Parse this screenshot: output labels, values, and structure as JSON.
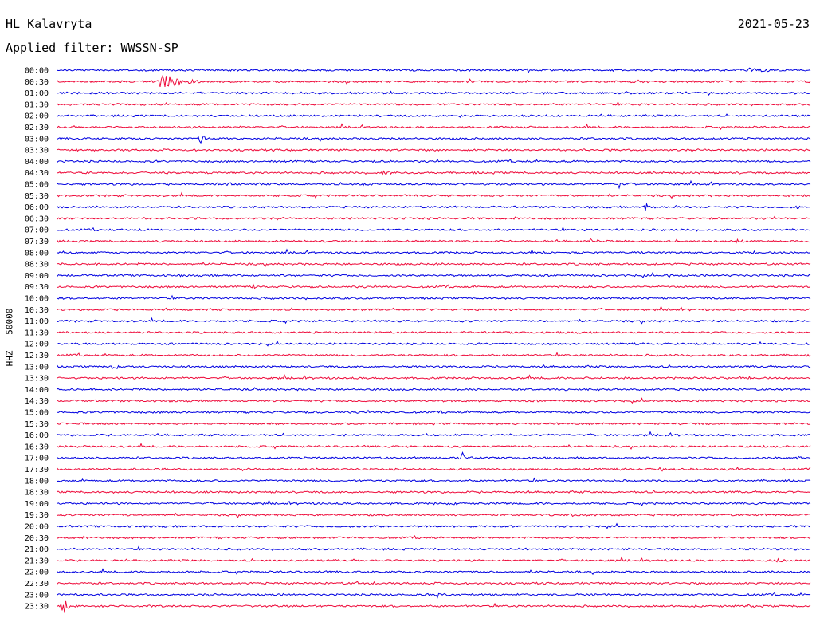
{
  "station": "HL Kalavryta",
  "date": "2021-05-23",
  "filter_label": "Applied filter: WWSSN-SP",
  "colors": {
    "odd": "#0000e0",
    "even": "#ee0a3a"
  },
  "chart_data": {
    "type": "line",
    "title": "HL Kalavryta",
    "subtitle": "Applied filter: WWSSN-SP",
    "ylabel": "HHZ - 50000",
    "xlabel": "",
    "grid": false,
    "row_labels": [
      "00:00",
      "00:30",
      "01:00",
      "01:30",
      "02:00",
      "02:30",
      "03:00",
      "03:30",
      "04:00",
      "04:30",
      "05:00",
      "05:30",
      "06:00",
      "06:30",
      "07:00",
      "07:30",
      "08:00",
      "08:30",
      "09:00",
      "09:30",
      "10:00",
      "10:30",
      "11:00",
      "11:30",
      "12:00",
      "12:30",
      "13:00",
      "13:30",
      "14:00",
      "14:30",
      "15:00",
      "15:30",
      "16:00",
      "16:30",
      "17:00",
      "17:30",
      "18:00",
      "18:30",
      "19:00",
      "19:30",
      "20:00",
      "20:30",
      "21:00",
      "21:30",
      "22:00",
      "22:30",
      "23:00",
      "23:30"
    ],
    "series_colors": [
      "#0000e0",
      "#ee0a3a"
    ]
  }
}
